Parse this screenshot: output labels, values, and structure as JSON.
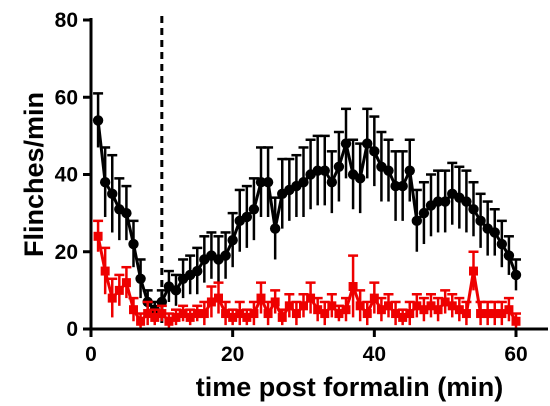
{
  "chart_data": {
    "type": "line",
    "title": "",
    "xlabel": "time post formalin (min)",
    "ylabel": "Flinches/min",
    "xlim": [
      0,
      62
    ],
    "ylim": [
      0,
      80
    ],
    "x_ticks": [
      0,
      20,
      40,
      60
    ],
    "y_ticks": [
      0,
      20,
      40,
      60,
      80
    ],
    "x_tick_labels": [
      "0",
      "20",
      "40",
      "60"
    ],
    "y_tick_labels": [
      "0",
      "20",
      "40",
      "60",
      "80"
    ],
    "grid": false,
    "legend": "none",
    "reference_line": {
      "x": 10,
      "style": "dashed",
      "color": "#000000"
    },
    "x": [
      1,
      2,
      3,
      4,
      5,
      6,
      7,
      8,
      9,
      10,
      11,
      12,
      13,
      14,
      15,
      16,
      17,
      18,
      19,
      20,
      21,
      22,
      23,
      24,
      25,
      26,
      27,
      28,
      29,
      30,
      31,
      32,
      33,
      34,
      35,
      36,
      37,
      38,
      39,
      40,
      41,
      42,
      43,
      44,
      45,
      46,
      47,
      48,
      49,
      50,
      51,
      52,
      53,
      54,
      55,
      56,
      57,
      58,
      59,
      60
    ],
    "series": [
      {
        "color": "#000000",
        "marker": "circle",
        "values": [
          54,
          38,
          35,
          31,
          30,
          22,
          13,
          7,
          5,
          7,
          11,
          10,
          13,
          14,
          15,
          18,
          19,
          18,
          19,
          23,
          28,
          29,
          31,
          38,
          38,
          26,
          35,
          36,
          37,
          38,
          40,
          41,
          41,
          38,
          42,
          48,
          40,
          39,
          48,
          46,
          42,
          41,
          37,
          37,
          41,
          28,
          30,
          32,
          33,
          33,
          35,
          34,
          33,
          31,
          28,
          26,
          25,
          22,
          19,
          14
        ],
        "errors": [
          7,
          9,
          10,
          8,
          7,
          6,
          5,
          3,
          2,
          3,
          4,
          4,
          5,
          5,
          6,
          6,
          6,
          6,
          6,
          7,
          8,
          8,
          8,
          9,
          9,
          8,
          9,
          8,
          8,
          9,
          9,
          9,
          9,
          8,
          9,
          9,
          9,
          9,
          9,
          9,
          9,
          8,
          9,
          9,
          8,
          8,
          8,
          8,
          8,
          8,
          8,
          8,
          8,
          7,
          7,
          7,
          6,
          6,
          5,
          4
        ]
      },
      {
        "color": "#ee0000",
        "marker": "square",
        "values": [
          24,
          15,
          8,
          10,
          12,
          5,
          2,
          4,
          3,
          4,
          2,
          3,
          4,
          3,
          4,
          4,
          7,
          8,
          4,
          3,
          4,
          3,
          4,
          8,
          4,
          7,
          3,
          6,
          4,
          6,
          8,
          5,
          4,
          6,
          4,
          5,
          11,
          6,
          4,
          8,
          5,
          6,
          4,
          3,
          4,
          6,
          5,
          6,
          5,
          7,
          6,
          5,
          4,
          15,
          4,
          4,
          4,
          4,
          5,
          2
        ],
        "errors": [
          4,
          6,
          5,
          4,
          4,
          3,
          2,
          3,
          2,
          2,
          2,
          2,
          2,
          2,
          2,
          3,
          4,
          4,
          3,
          2,
          3,
          2,
          3,
          4,
          3,
          3,
          2,
          3,
          3,
          3,
          4,
          3,
          3,
          3,
          2,
          3,
          8,
          4,
          3,
          4,
          3,
          3,
          3,
          2,
          3,
          3,
          3,
          3,
          3,
          3,
          3,
          3,
          3,
          5,
          3,
          3,
          3,
          3,
          3,
          2
        ]
      }
    ]
  }
}
